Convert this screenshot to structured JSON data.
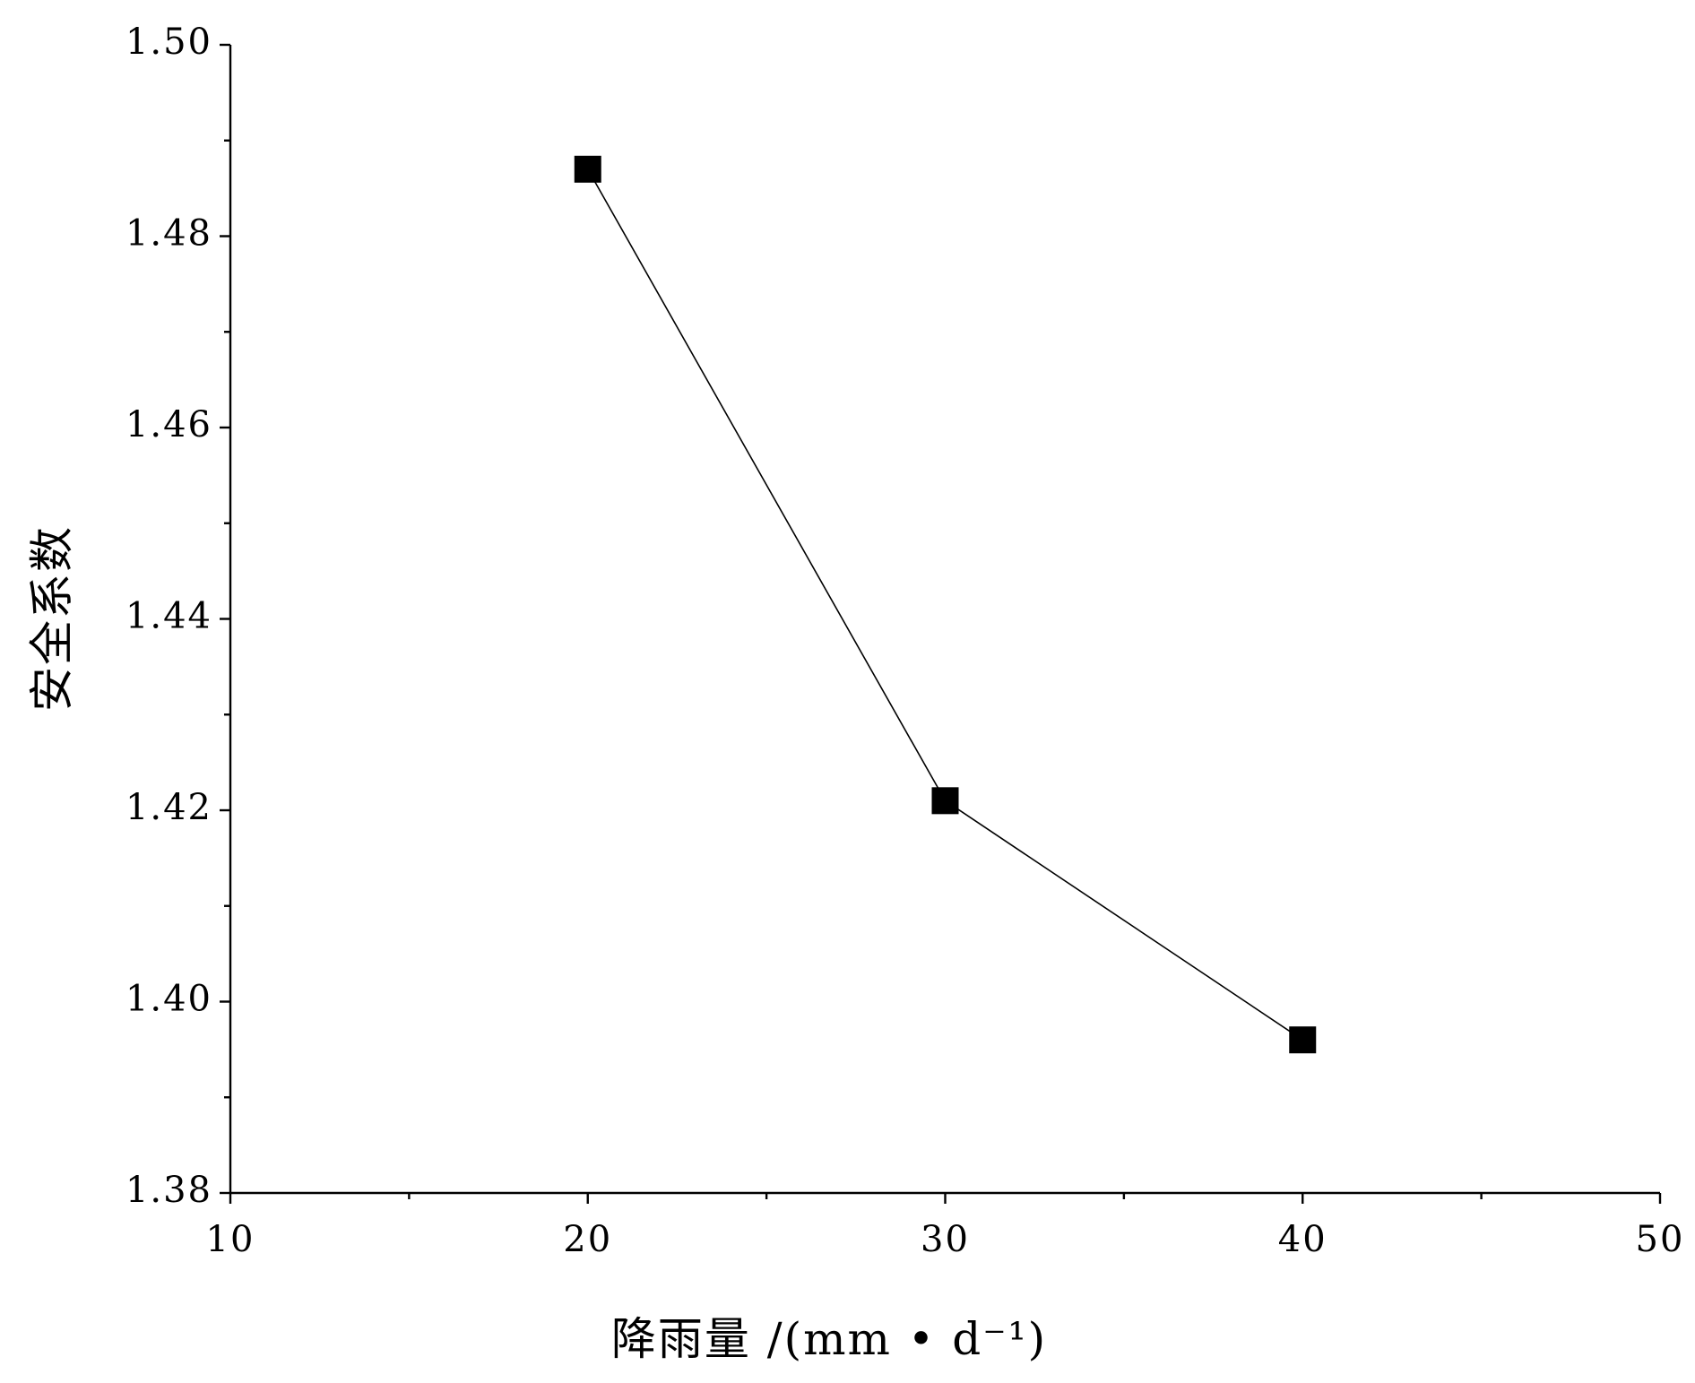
{
  "chart_data": {
    "type": "line",
    "xlabel": "降雨量 /(mm • d⁻¹)",
    "ylabel": "安全系数",
    "x": [
      20,
      30,
      40
    ],
    "series": [
      {
        "color": "#000000",
        "values": [
          1.487,
          1.421,
          1.396
        ]
      }
    ],
    "xlim": [
      10,
      50
    ],
    "xticks": [
      10,
      20,
      30,
      40,
      50
    ],
    "ylim": [
      1.38,
      1.5
    ],
    "yticks": [
      {
        "value": 1.38,
        "label": "1.38"
      },
      {
        "value": 1.4,
        "label": "1.40"
      },
      {
        "value": 1.42,
        "label": "1.42"
      },
      {
        "value": 1.44,
        "label": "1.44"
      },
      {
        "value": 1.46,
        "label": "1.46"
      },
      {
        "value": 1.48,
        "label": "1.48"
      },
      {
        "value": 1.5,
        "label": "1.50"
      }
    ],
    "grid": false
  }
}
